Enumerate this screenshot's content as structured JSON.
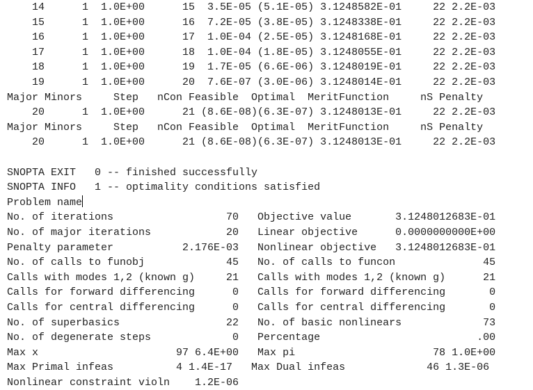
{
  "terminal": {
    "iteration_rows_a": [
      "    14      1  1.0E+00      15  3.5E-05 (5.1E-05) 3.1248582E-01     22 2.2E-03",
      "    15      1  1.0E+00      16  7.2E-05 (3.8E-05) 3.1248338E-01     22 2.2E-03",
      "    16      1  1.0E+00      17  1.0E-04 (2.5E-05) 3.1248168E-01     22 2.2E-03",
      "    17      1  1.0E+00      18  1.0E-04 (1.8E-05) 3.1248055E-01     22 2.2E-03",
      "    18      1  1.0E+00      19  1.7E-05 (6.6E-06) 3.1248019E-01     22 2.2E-03",
      "    19      1  1.0E+00      20  7.6E-07 (3.0E-06) 3.1248014E-01     22 2.2E-03"
    ],
    "header_1": "Major Minors     Step   nCon Feasible  Optimal  MeritFunction     nS Penalty",
    "iteration_row_b": "    20      1  1.0E+00      21 (8.6E-08)(6.3E-07) 3.1248013E-01     22 2.2E-03",
    "header_2": "Major Minors     Step   nCon Feasible  Optimal  MeritFunction     nS Penalty",
    "iteration_row_c": "    20      1  1.0E+00      21 (8.6E-08)(6.3E-07) 3.1248013E-01     22 2.2E-03",
    "exit_line": "SNOPTA EXIT   0 -- finished successfully",
    "info_line": "SNOPTA INFO   1 -- optimality conditions satisfied",
    "problem_name": "Problem name",
    "summary_rows": [
      "No. of iterations                  70   Objective value       3.1248012683E-01",
      "No. of major iterations            20   Linear objective      0.0000000000E+00",
      "Penalty parameter           2.176E-03   Nonlinear objective   3.1248012683E-01",
      "No. of calls to funobj             45   No. of calls to funcon              45",
      "Calls with modes 1,2 (known g)     21   Calls with modes 1,2 (known g)      21",
      "Calls for forward differencing      0   Calls for forward differencing       0",
      "Calls for central differencing      0   Calls for central differencing       0",
      "No. of superbasics                 22   No. of basic nonlinears             73",
      "No. of degenerate steps             0   Percentage                         .00",
      "Max x                      97 6.4E+00   Max pi                      78 1.0E+00",
      "Max Primal infeas          4 1.4E-17   Max Dual infeas             46 1.3E-06",
      "Nonlinear constraint violn    1.2E-06"
    ]
  }
}
